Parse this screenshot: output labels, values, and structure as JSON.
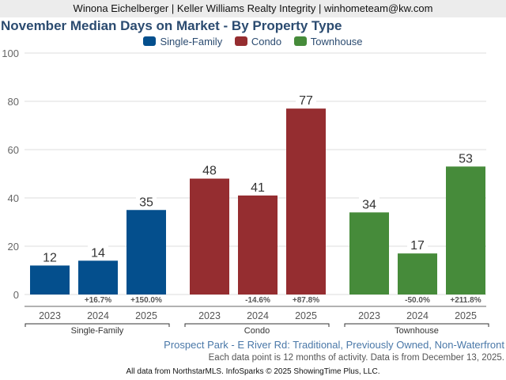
{
  "header": {
    "agent_line": "Winona Eichelberger | Keller Williams Realty Integrity | winhometeam@kw.com"
  },
  "chart_data": {
    "type": "bar",
    "title": "November Median Days on Market - By Property Type",
    "xlabel": "",
    "ylabel": "",
    "ylim": [
      0,
      100
    ],
    "yticks": [
      "0",
      "20",
      "40",
      "60",
      "80",
      "100"
    ],
    "grid": true,
    "legend_position": "top-center",
    "legend": [
      {
        "name": "Single-Family",
        "color": "#044f8d"
      },
      {
        "name": "Condo",
        "color": "#952d30"
      },
      {
        "name": "Townhouse",
        "color": "#468b3a"
      }
    ],
    "groups": [
      {
        "name": "Single-Family",
        "color": "#044f8d",
        "categories": [
          "2023",
          "2024",
          "2025"
        ],
        "values": [
          12,
          14,
          35
        ],
        "value_labels": [
          "12",
          "14",
          "35"
        ],
        "changes": [
          "",
          "+16.7%",
          "+150.0%"
        ]
      },
      {
        "name": "Condo",
        "color": "#952d30",
        "categories": [
          "2023",
          "2024",
          "2025"
        ],
        "values": [
          48,
          41,
          77
        ],
        "value_labels": [
          "48",
          "41",
          "77"
        ],
        "changes": [
          "",
          "-14.6%",
          "+87.8%"
        ]
      },
      {
        "name": "Townhouse",
        "color": "#468b3a",
        "categories": [
          "2023",
          "2024",
          "2025"
        ],
        "values": [
          34,
          17,
          53
        ],
        "value_labels": [
          "34",
          "17",
          "53"
        ],
        "changes": [
          "",
          "-50.0%",
          "+211.8%"
        ]
      }
    ]
  },
  "footer": {
    "subtitle": "Prospect Park - E River Rd: Traditional, Previously Owned, Non-Waterfront",
    "note": "Each data point is 12 months of activity. Data is from December 13, 2025.",
    "source": "All data from NorthstarMLS. InfoSparks © 2025 ShowingTime Plus, LLC."
  }
}
